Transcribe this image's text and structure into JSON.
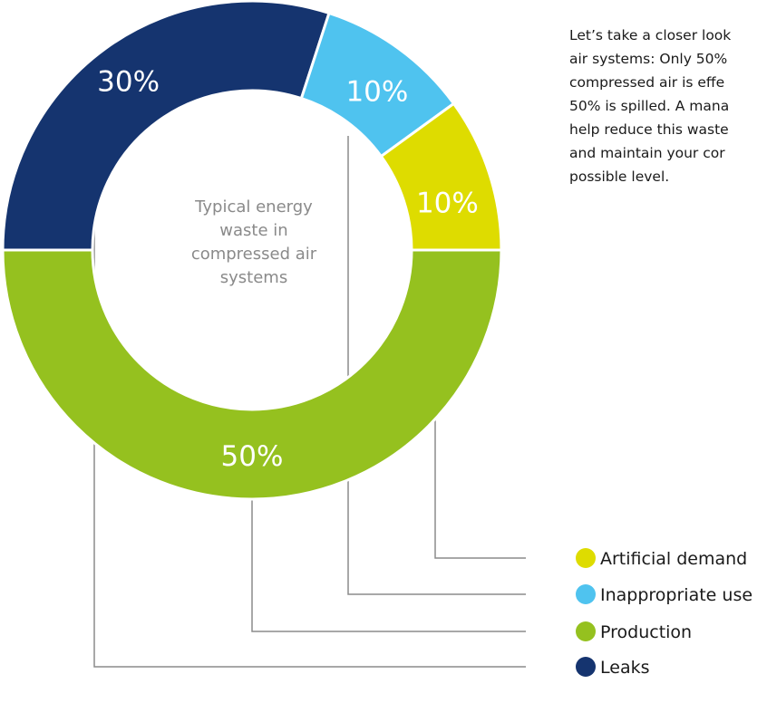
{
  "chart_data": {
    "type": "pie",
    "title": "Typical energy waste in compressed air systems",
    "categories": [
      "Production",
      "Leaks",
      "Inappropriate use",
      "Artificial demand"
    ],
    "values": [
      50,
      30,
      10,
      10
    ],
    "data_labels": [
      "50%",
      "30%",
      "10%",
      "10%"
    ],
    "colors": [
      "#95c11f",
      "#15346f",
      "#4fc3ef",
      "#dedc00"
    ],
    "legend_order": [
      "Artificial demand",
      "Inappropriate use",
      "Production",
      "Leaks"
    ],
    "legend_colors": [
      "#dedc00",
      "#4fc3ef",
      "#95c11f",
      "#15346f"
    ],
    "legend_position": "bottom-right"
  },
  "center_label": [
    "Typical energy",
    "waste in",
    "compressed air",
    "systems"
  ],
  "side_text": [
    "Let’s take a closer look",
    "air systems: Only 50%",
    "compressed air is effe",
    "50% is spilled. A mana",
    "help reduce this waste",
    "and maintain your cor",
    "possible level."
  ],
  "colors": {
    "label_text": "#ffffff",
    "leader_line": "#8c8c8c",
    "legend_text": "#1a1a1a",
    "center_text": "#8a8a8a"
  }
}
